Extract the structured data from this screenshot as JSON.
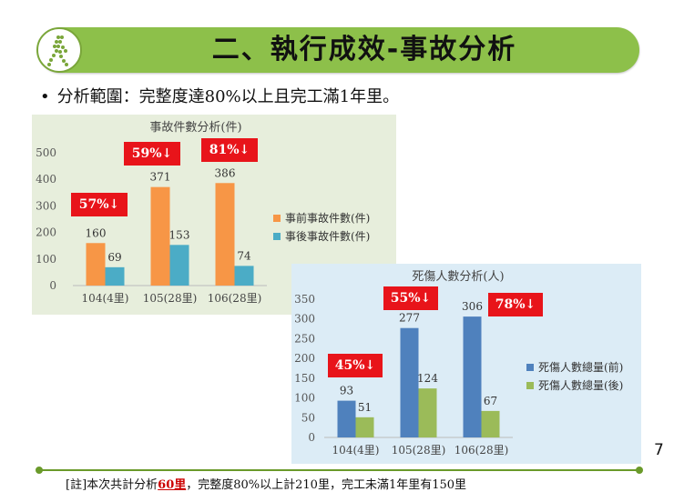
{
  "slide": {
    "title": "二、執行成效-事故分析",
    "bullet": "分析範圍：完整度達80%以上且完工滿1年里。",
    "page_number": "7",
    "footer_prefix": "[註]本次共計分析",
    "footer_highlight": "60里",
    "footer_suffix": "，完整度80%以上計210里，完工未滿1年里有150里"
  },
  "colors": {
    "title_bar": "#8dc04a",
    "badge_red": "#e8141a",
    "panel1_bg": "#e7eedc",
    "panel2_bg": "#dcecf6",
    "orange": "#f79646",
    "cyan": "#4bacc6",
    "blue": "#4f81bd",
    "green": "#9bbb59"
  },
  "chart_data": [
    {
      "type": "bar",
      "title": "事故件數分析(件)",
      "categories": [
        "104(4里)",
        "105(28里)",
        "106(28里)"
      ],
      "series": [
        {
          "name": "事前事故件數(件)",
          "values": [
            160,
            371,
            386
          ],
          "color": "#f79646"
        },
        {
          "name": "事後事故件數(件)",
          "values": [
            69,
            153,
            74
          ],
          "color": "#4bacc6"
        }
      ],
      "ylim": [
        0,
        500
      ],
      "yticks": [
        0,
        100,
        200,
        300,
        400,
        500
      ],
      "badges": [
        "57%↓",
        "59%↓",
        "81%↓"
      ],
      "legend": "right",
      "grid": false
    },
    {
      "type": "bar",
      "title": "死傷人數分析(人)",
      "categories": [
        "104(4里)",
        "105(28里)",
        "106(28里)"
      ],
      "series": [
        {
          "name": "死傷人數總量(前)",
          "values": [
            93,
            277,
            306
          ],
          "color": "#4f81bd"
        },
        {
          "name": "死傷人數總量(後)",
          "values": [
            51,
            124,
            67
          ],
          "color": "#9bbb59"
        }
      ],
      "ylim": [
        0,
        350
      ],
      "yticks": [
        0,
        50,
        100,
        150,
        200,
        250,
        300,
        350
      ],
      "badges": [
        "45%↓",
        "55%↓",
        "78%↓"
      ],
      "legend": "right",
      "grid": false
    }
  ]
}
